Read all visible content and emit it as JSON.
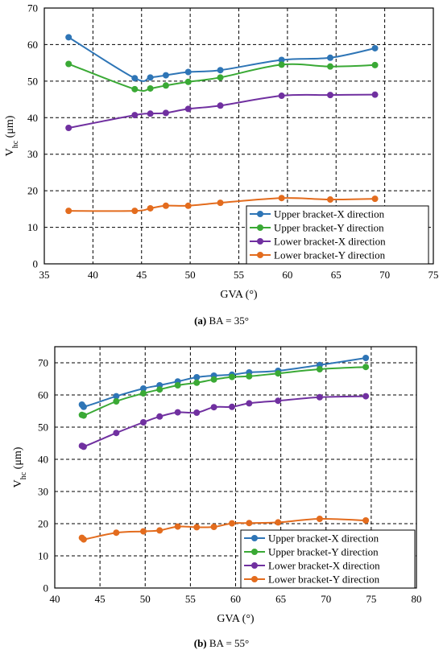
{
  "chart_data": [
    {
      "type": "line",
      "xlabel": "GVA (°)",
      "ylabel_main": "V",
      "ylabel_sub": "hc",
      "ylabel_unit": " (μm)",
      "xlim": [
        35,
        75
      ],
      "ylim": [
        0,
        70
      ],
      "xticks": [
        "35",
        "40",
        "45",
        "50",
        "55",
        "60",
        "65",
        "70",
        "75"
      ],
      "yticks": [
        "0",
        "10",
        "20",
        "30",
        "40",
        "50",
        "60",
        "70"
      ],
      "xtick_values": [
        35,
        40,
        45,
        50,
        55,
        60,
        65,
        70,
        75
      ],
      "ytick_values": [
        0,
        10,
        20,
        30,
        40,
        50,
        60,
        70
      ],
      "grid": true,
      "legend_position": "bottom-right",
      "caption_label": "(a)",
      "caption_text": " BA = 35°",
      "series": [
        {
          "name": "Upper bracket-X direction",
          "color": "#2e75b6",
          "x": [
            37.5,
            44.3,
            45.9,
            47.5,
            49.8,
            53.1,
            59.4,
            64.4,
            69.0
          ],
          "y": [
            62.0,
            50.8,
            51.0,
            51.6,
            52.5,
            53.0,
            55.8,
            56.4,
            59.0
          ]
        },
        {
          "name": "Upper bracket-Y direction",
          "color": "#3aa935",
          "x": [
            37.5,
            44.3,
            45.9,
            47.5,
            49.8,
            53.1,
            59.4,
            64.4,
            69.0
          ],
          "y": [
            54.7,
            47.8,
            48.0,
            48.8,
            49.8,
            51.0,
            54.5,
            54.0,
            54.4
          ]
        },
        {
          "name": "Lower bracket-X direction",
          "color": "#7030a0",
          "x": [
            37.5,
            44.3,
            45.9,
            47.5,
            49.8,
            53.1,
            59.4,
            64.4,
            69.0
          ],
          "y": [
            37.2,
            40.7,
            41.1,
            41.3,
            42.4,
            43.3,
            46.0,
            46.2,
            46.3
          ]
        },
        {
          "name": "Lower bracket-Y direction",
          "color": "#e36c1e",
          "x": [
            37.5,
            44.3,
            45.9,
            47.5,
            49.8,
            53.1,
            59.4,
            64.4,
            69.0
          ],
          "y": [
            14.5,
            14.5,
            15.2,
            15.9,
            15.9,
            16.7,
            18.0,
            17.6,
            17.8
          ]
        }
      ]
    },
    {
      "type": "line",
      "xlabel": "GVA (°)",
      "ylabel_main": "V",
      "ylabel_sub": "hc",
      "ylabel_unit": " (μm)",
      "xlim": [
        40,
        80
      ],
      "ylim": [
        0,
        75
      ],
      "xticks": [
        "40",
        "45",
        "50",
        "55",
        "60",
        "65",
        "70",
        "75",
        "80"
      ],
      "yticks": [
        "0",
        "10",
        "20",
        "30",
        "40",
        "50",
        "60",
        "70"
      ],
      "xtick_values": [
        40,
        45,
        50,
        55,
        60,
        65,
        70,
        75,
        80
      ],
      "ytick_values": [
        0,
        10,
        20,
        30,
        40,
        50,
        60,
        70
      ],
      "grid": true,
      "legend_position": "bottom-right",
      "caption_label": "(b)",
      "caption_text": " BA = 55°",
      "series": [
        {
          "name": "Upper bracket-X direction",
          "color": "#2e75b6",
          "x": [
            43.0,
            43.2,
            46.8,
            49.8,
            51.6,
            53.6,
            55.7,
            57.6,
            59.6,
            61.5,
            64.7,
            69.3,
            74.4
          ],
          "y": [
            57.0,
            56.3,
            59.6,
            62.0,
            63.0,
            64.2,
            65.5,
            66.0,
            66.3,
            67.0,
            67.5,
            69.3,
            71.5
          ]
        },
        {
          "name": "Upper bracket-Y direction",
          "color": "#3aa935",
          "x": [
            43.0,
            43.2,
            46.8,
            49.8,
            51.6,
            53.6,
            55.7,
            57.6,
            59.6,
            61.5,
            64.7,
            69.3,
            74.4
          ],
          "y": [
            53.8,
            53.6,
            58.0,
            60.5,
            61.7,
            63.0,
            63.8,
            64.8,
            65.6,
            65.8,
            66.7,
            68.0,
            68.7
          ]
        },
        {
          "name": "Lower bracket-X direction",
          "color": "#7030a0",
          "x": [
            43.0,
            43.2,
            46.8,
            49.8,
            51.6,
            53.6,
            55.7,
            57.6,
            59.6,
            61.5,
            64.7,
            69.3,
            74.4
          ],
          "y": [
            44.2,
            43.9,
            48.2,
            51.5,
            53.3,
            54.6,
            54.5,
            56.2,
            56.3,
            57.4,
            58.2,
            59.3,
            59.6
          ]
        },
        {
          "name": "Lower bracket-Y direction",
          "color": "#e36c1e",
          "x": [
            43.0,
            43.2,
            46.8,
            49.8,
            51.6,
            53.6,
            55.7,
            57.6,
            59.6,
            61.5,
            64.7,
            69.3,
            74.4
          ],
          "y": [
            15.6,
            15.1,
            17.2,
            17.6,
            17.9,
            19.1,
            18.9,
            19.0,
            20.1,
            20.2,
            20.4,
            21.5,
            21.0
          ]
        }
      ]
    }
  ]
}
